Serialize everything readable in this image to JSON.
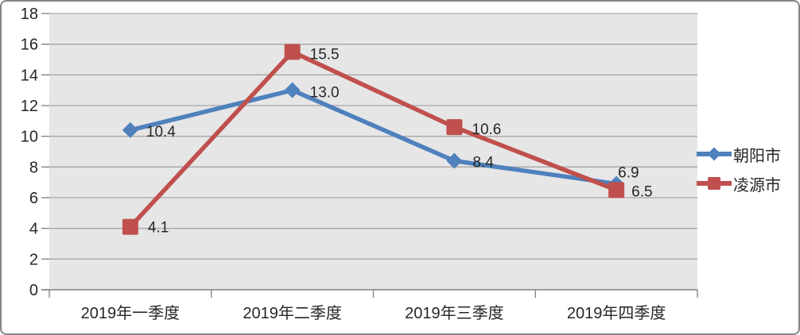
{
  "chart_data": {
    "type": "line",
    "title": "",
    "xlabel": "",
    "ylabel": "",
    "categories": [
      "2019年一季度",
      "2019年二季度",
      "2019年三季度",
      "2019年四季度"
    ],
    "series": [
      {
        "name": "朝阳市",
        "values": [
          10.4,
          13.0,
          8.4,
          6.9
        ],
        "labels": [
          "10.4",
          "13.0",
          "8.4",
          "6.9"
        ],
        "color": "#4F81BD",
        "marker": "diamond",
        "label_offsets": [
          [
            20,
            1
          ],
          [
            22,
            2
          ],
          [
            23,
            1
          ],
          [
            2,
            -15
          ]
        ]
      },
      {
        "name": "凌源市",
        "values": [
          4.1,
          15.5,
          10.6,
          6.5
        ],
        "labels": [
          "4.1",
          "15.5",
          "10.6",
          "6.5"
        ],
        "color": "#C0504D",
        "marker": "square",
        "label_offsets": [
          [
            22,
            0
          ],
          [
            22,
            2
          ],
          [
            22,
            2
          ],
          [
            19,
            1
          ]
        ]
      }
    ],
    "ylim": [
      0,
      18
    ],
    "yticks": [
      0,
      2,
      4,
      6,
      8,
      10,
      12,
      14,
      16,
      18
    ],
    "grid": true,
    "legend_position": "right"
  },
  "colors": {
    "plot_bg": "#E6E6E6",
    "gridline": "#A6A6A6",
    "axis": "#808080",
    "text": "#262626",
    "frame_border": "#848484"
  }
}
